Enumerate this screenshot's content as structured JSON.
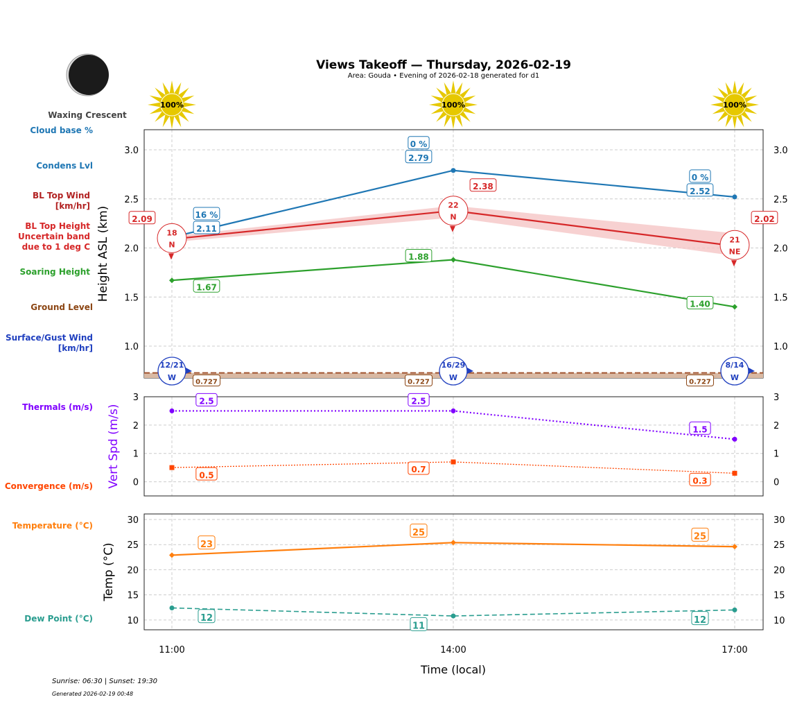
{
  "header": {
    "title": "Views Takeoff — Thursday, 2026-02-19",
    "subtitle": "Area: Gouda • Evening of 2026-02-18 generated for d1",
    "moon_phase": "Waxing Crescent"
  },
  "footer": {
    "sun": "Sunrise: 06:30 | Sunset: 19:30",
    "generated": "Generated 2026-02-19 00:48"
  },
  "side_labels": {
    "cloud": "Cloud base %",
    "condens": "Condens Lvl",
    "bl_wind": [
      "BL Top Wind",
      "[km/hr]"
    ],
    "bl_height": [
      "BL Top Height",
      "Uncertain band",
      "due to 1 deg C"
    ],
    "soaring": "Soaring Height",
    "ground": "Ground Level",
    "surface_wind": [
      "Surface/Gust Wind",
      "[km/hr]"
    ],
    "thermals": "Thermals (m/s)",
    "convergence": "Convergence (m/s)",
    "temperature": "Temperature (°C)",
    "dewpoint": "Dew Point (°C)"
  },
  "colors": {
    "condens": "#1f77b4",
    "bl": "#d62728",
    "band": "#f5c6c6",
    "soaring": "#2ca02c",
    "ground": "#8b4513",
    "surface": "#1f3fbf",
    "thermal": "#8000ff",
    "conv": "#ff4500",
    "temp": "#ff7f0e",
    "dew": "#2a9d8f",
    "sun": "#e6c800"
  },
  "chart_data": [
    {
      "type": "line",
      "ylabel": "Height ASL (km)",
      "xlabel": "Time (local)",
      "x": [
        "11:00",
        "14:00",
        "17:00"
      ],
      "ylim": [
        0.675,
        3.205
      ],
      "yticks": [
        "1.0",
        "1.5",
        "2.0",
        "2.5",
        "3.0"
      ],
      "grid": true,
      "sun_percent": [
        "100%",
        "100%",
        "100%"
      ],
      "condens_level": [
        2.11,
        2.79,
        2.52
      ],
      "cloud_base_percent": [
        "16 %",
        "0 %",
        "0 %"
      ],
      "bl_top": [
        2.09,
        2.38,
        2.02
      ],
      "bl_band_low": [
        2.06,
        2.31,
        1.92
      ],
      "bl_band_high": [
        2.12,
        2.43,
        2.15
      ],
      "bl_wind": [
        {
          "speed": "18",
          "dir": "N"
        },
        {
          "speed": "22",
          "dir": "N"
        },
        {
          "speed": "21",
          "dir": "NE"
        }
      ],
      "soaring": [
        1.67,
        1.88,
        1.4
      ],
      "ground": [
        0.727,
        0.727,
        0.727
      ],
      "surface_wind": [
        {
          "speed": "12/21",
          "dir": "W"
        },
        {
          "speed": "16/29",
          "dir": "W"
        },
        {
          "speed": "8/14",
          "dir": "W"
        }
      ]
    },
    {
      "type": "line",
      "ylabel": "Vert Spd (m/s)",
      "ylim": [
        -0.5,
        3.0
      ],
      "yticks": [
        "0",
        "1",
        "2",
        "3"
      ],
      "grid": true,
      "thermals": [
        2.5,
        2.5,
        1.5
      ],
      "convergence": [
        0.5,
        0.7,
        0.3
      ]
    },
    {
      "type": "line",
      "ylabel": "Temp (°C)",
      "ylim": [
        8.05,
        31.1
      ],
      "yticks": [
        "10",
        "15",
        "20",
        "25",
        "30"
      ],
      "grid": true,
      "temperature": [
        22.9,
        25.4,
        24.6
      ],
      "temperature_labels": [
        "23",
        "25",
        "25"
      ],
      "dewpoint": [
        12.4,
        10.8,
        12.0
      ],
      "dewpoint_labels": [
        "12",
        "11",
        "12"
      ]
    }
  ]
}
